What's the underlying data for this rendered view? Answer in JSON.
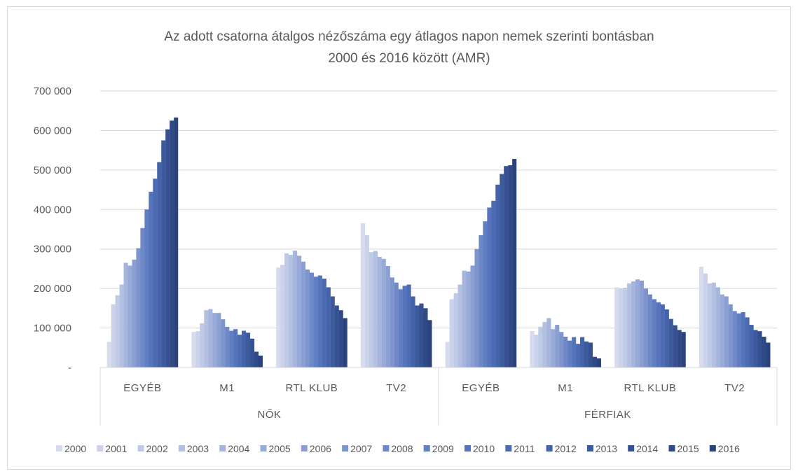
{
  "chart_data": {
    "type": "bar",
    "title": "Az adott csatorna átalgos nézőszáma egy átlagos napon nemek szerinti bontásban",
    "subtitle": "2000 és 2016 között (AMR)",
    "ylim": [
      0,
      700000
    ],
    "y_ticks": [
      {
        "value": 0,
        "label": "-"
      },
      {
        "value": 100000,
        "label": "100 000"
      },
      {
        "value": 200000,
        "label": "200 000"
      },
      {
        "value": 300000,
        "label": "300 000"
      },
      {
        "value": 400000,
        "label": "400 000"
      },
      {
        "value": 500000,
        "label": "500 000"
      },
      {
        "value": 600000,
        "label": "600 000"
      },
      {
        "value": 700000,
        "label": "700 000"
      }
    ],
    "grid": true,
    "legend_position": "bottom",
    "groups": [
      "NŐK",
      "FÉRFIAK"
    ],
    "channels": [
      "EGYÉB",
      "M1",
      "RTL KLUB",
      "TV2"
    ],
    "series_names": [
      "2000",
      "2001",
      "2002",
      "2003",
      "2004",
      "2005",
      "2006",
      "2007",
      "2008",
      "2009",
      "2010",
      "2011",
      "2012",
      "2013",
      "2014",
      "2015",
      "2016"
    ],
    "series_colors": [
      "#d6dcee",
      "#cbd3ea",
      "#bfcae6",
      "#b3c0e1",
      "#a6b5dc",
      "#98aad7",
      "#8b9fd2",
      "#7d95cd",
      "#6f89c8",
      "#617ec2",
      "#5574bb",
      "#4c6bb2",
      "#4463a8",
      "#3d5a9d",
      "#365192",
      "#304a87",
      "#2b437c"
    ],
    "values": {
      "NŐK": {
        "EGYÉB": [
          65000,
          160000,
          183000,
          210000,
          265000,
          258000,
          273000,
          302000,
          353000,
          400000,
          445000,
          478000,
          520000,
          575000,
          603000,
          625000,
          633000
        ],
        "M1": [
          90000,
          92000,
          112000,
          145000,
          148000,
          138000,
          138000,
          122000,
          103000,
          93000,
          97000,
          83000,
          93000,
          88000,
          73000,
          40000,
          30000
        ],
        "RTL KLUB": [
          253000,
          260000,
          289000,
          285000,
          296000,
          283000,
          268000,
          248000,
          240000,
          230000,
          233000,
          225000,
          203000,
          180000,
          157000,
          145000,
          125000
        ],
        "TV2": [
          365000,
          335000,
          292000,
          295000,
          280000,
          275000,
          257000,
          228000,
          215000,
          198000,
          207000,
          210000,
          180000,
          157000,
          162000,
          150000,
          120000
        ]
      },
      "FÉRFIAK": {
        "EGYÉB": [
          65000,
          173000,
          188000,
          210000,
          245000,
          243000,
          258000,
          300000,
          335000,
          370000,
          405000,
          422000,
          463000,
          490000,
          510000,
          512000,
          528000
        ],
        "M1": [
          92000,
          83000,
          103000,
          115000,
          125000,
          97000,
          108000,
          90000,
          78000,
          68000,
          77000,
          60000,
          77000,
          66000,
          63000,
          27000,
          23000
        ],
        "RTL KLUB": [
          203000,
          200000,
          202000,
          213000,
          218000,
          223000,
          220000,
          200000,
          185000,
          173000,
          165000,
          160000,
          147000,
          123000,
          107000,
          95000,
          90000
        ],
        "TV2": [
          255000,
          238000,
          213000,
          215000,
          203000,
          185000,
          180000,
          160000,
          143000,
          137000,
          140000,
          127000,
          108000,
          95000,
          92000,
          78000,
          63000
        ]
      }
    }
  }
}
